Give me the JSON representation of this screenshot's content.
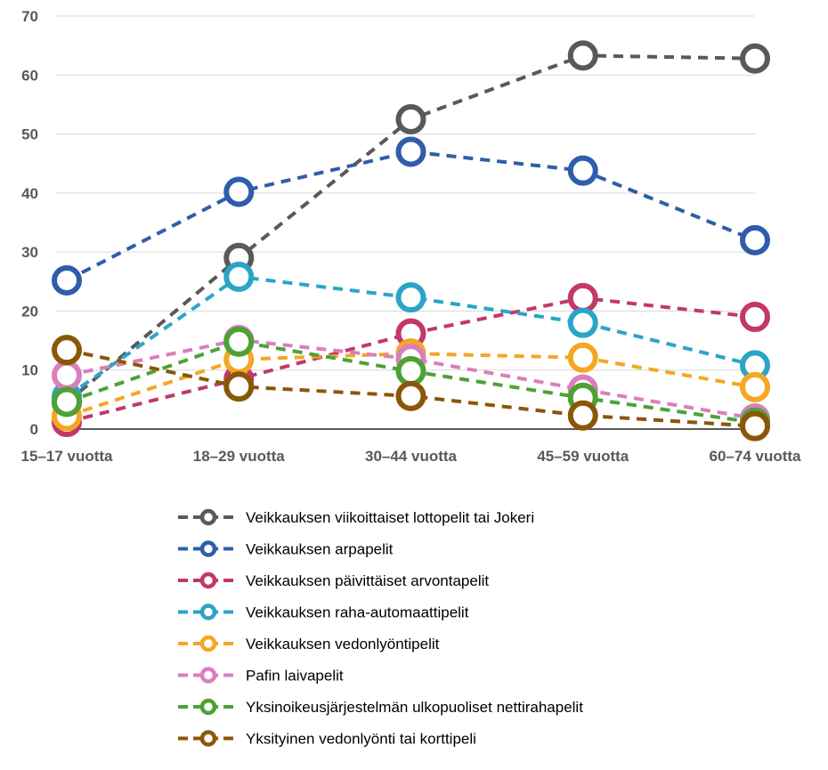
{
  "chart_data": {
    "type": "line",
    "categories": [
      "15–17 vuotta",
      "18–29 vuotta",
      "30–44 vuotta",
      "45–59 vuotta",
      "60–74 vuotta"
    ],
    "ylim": [
      0,
      70
    ],
    "yticks": [
      0,
      10,
      20,
      30,
      40,
      50,
      60,
      70
    ],
    "grid": true,
    "legend_position": "bottom",
    "line_style": "dashed",
    "marker": "hollow-circle",
    "series": [
      {
        "name": "Veikkauksen viikoittaiset lottopelit tai Jokeri",
        "color": "#595959",
        "values": [
          4.5,
          29,
          52.5,
          63.3,
          62.8
        ]
      },
      {
        "name": "Veikkauksen arpapelit",
        "color": "#2f5dab",
        "values": [
          25.2,
          40.2,
          47,
          43.8,
          32
        ]
      },
      {
        "name": "Veikkauksen päivittäiset arvontapelit",
        "color": "#c2386b",
        "values": [
          1.2,
          8.5,
          16.2,
          22.2,
          19
        ]
      },
      {
        "name": "Veikkauksen raha-automaattipelit",
        "color": "#2aa5c7",
        "values": [
          5.5,
          25.8,
          22.3,
          18,
          10.8
        ]
      },
      {
        "name": "Veikkauksen vedonlyöntipelit",
        "color": "#f5a623",
        "values": [
          2.2,
          11.8,
          12.8,
          12.1,
          7.1
        ]
      },
      {
        "name": "Pafin laivapelit",
        "color": "#d97fbc",
        "values": [
          9.1,
          15.1,
          11.9,
          6.7,
          1.8
        ]
      },
      {
        "name": "Yksinoikeusjärjestelmän ulkopuoliset nettirahapelit",
        "color": "#4ea135",
        "values": [
          4.6,
          14.8,
          9.8,
          5.3,
          1.1
        ]
      },
      {
        "name": "Yksityinen vedonlyönti tai korttipeli",
        "color": "#8a5707",
        "values": [
          13.4,
          7.2,
          5.6,
          2.3,
          0.5
        ]
      }
    ]
  }
}
